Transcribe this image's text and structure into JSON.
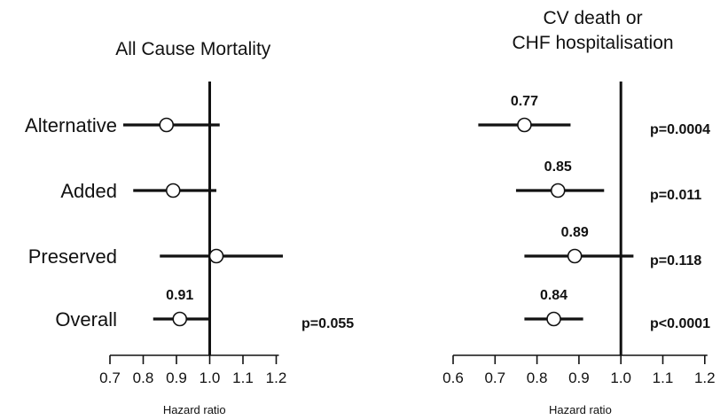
{
  "chart_data": [
    {
      "type": "forest",
      "title": "All Cause Mortality",
      "xlabel": "Hazard ratio",
      "xlim": [
        0.7,
        1.2
      ],
      "xticks": [
        "0.7",
        "0.8",
        "0.9",
        "1.0",
        "1.1",
        "1.2"
      ],
      "reference_line": 1.0,
      "rows": [
        {
          "name": "Alternative",
          "estimate": 0.87,
          "lower": 0.74,
          "upper": 1.03,
          "estimate_label": "",
          "p_label": ""
        },
        {
          "name": "Added",
          "estimate": 0.89,
          "lower": 0.77,
          "upper": 1.02,
          "estimate_label": "",
          "p_label": ""
        },
        {
          "name": "Preserved",
          "estimate": 1.02,
          "lower": 0.85,
          "upper": 1.22,
          "estimate_label": "",
          "p_label": ""
        },
        {
          "name": "Overall",
          "estimate": 0.91,
          "lower": 0.83,
          "upper": 1.0,
          "estimate_label": "0.91",
          "p_label": "p=0.055"
        }
      ]
    },
    {
      "type": "forest",
      "title_lines": [
        "CV death or",
        "CHF hospitalisation"
      ],
      "xlabel": "Hazard ratio",
      "xlim": [
        0.6,
        1.2
      ],
      "xticks": [
        "0.6",
        "0.7",
        "0.8",
        "0.9",
        "1.0",
        "1.1",
        "1.2"
      ],
      "reference_line": 1.0,
      "rows": [
        {
          "name": "Alternative",
          "estimate": 0.77,
          "lower": 0.66,
          "upper": 0.88,
          "estimate_label": "0.77",
          "p_label": "p=0.0004"
        },
        {
          "name": "Added",
          "estimate": 0.85,
          "lower": 0.75,
          "upper": 0.96,
          "estimate_label": "0.85",
          "p_label": "p=0.011"
        },
        {
          "name": "Preserved",
          "estimate": 0.89,
          "lower": 0.77,
          "upper": 1.03,
          "estimate_label": "0.89",
          "p_label": "p=0.118"
        },
        {
          "name": "Overall",
          "estimate": 0.84,
          "lower": 0.77,
          "upper": 0.91,
          "estimate_label": "0.84",
          "p_label": "p<0.0001"
        }
      ]
    }
  ]
}
